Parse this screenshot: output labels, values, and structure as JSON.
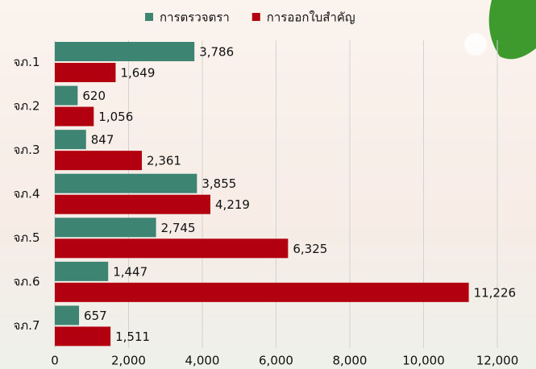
{
  "chart_data": {
    "type": "bar",
    "orientation": "horizontal",
    "categories": [
      "จภ.1",
      "จภ.2",
      "จภ.3",
      "จภ.4",
      "จภ.5",
      "จภ.6",
      "จภ.7"
    ],
    "series": [
      {
        "name": "การตรวจตรา",
        "color": "#3e8472",
        "values": [
          3786,
          620,
          847,
          3855,
          2745,
          1447,
          657
        ],
        "value_labels": [
          "3,786",
          "620",
          "847",
          "3,855",
          "2,745",
          "1,447",
          "657"
        ]
      },
      {
        "name": "การออกใบสำคัญ",
        "color": "#b30010",
        "values": [
          1649,
          1056,
          2361,
          4219,
          6325,
          11226,
          1511
        ],
        "value_labels": [
          "1,649",
          "1,056",
          "2,361",
          "4,219",
          "6,325",
          "11,226",
          "1,511"
        ]
      }
    ],
    "xlim": [
      0,
      12000
    ],
    "xticks": [
      0,
      {
        "value": 2000,
        "label": "2,000"
      },
      {
        "value": 4000,
        "label": "4,000"
      },
      {
        "value": 6000,
        "label": "6,000"
      },
      {
        "value": 8000,
        "label": "8,000"
      },
      {
        "value": 10000,
        "label": "10,000"
      },
      {
        "value": 12000,
        "label": "12,000"
      }
    ],
    "grid": true,
    "legend": "top"
  }
}
